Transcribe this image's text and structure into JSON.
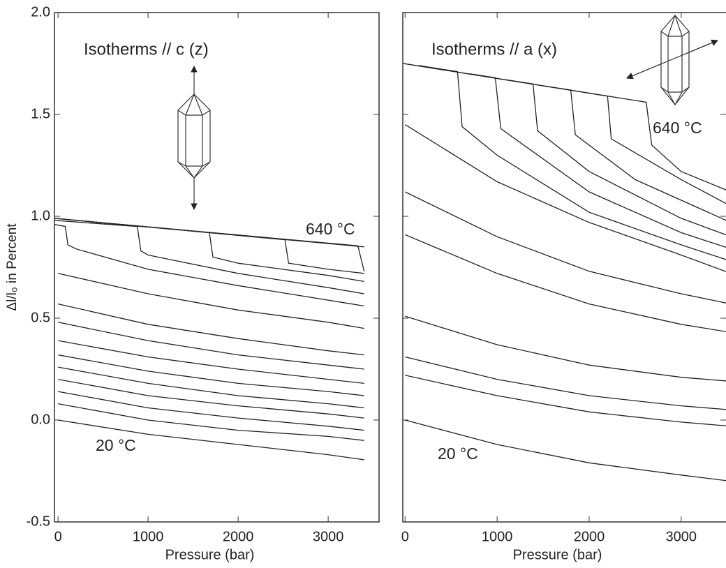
{
  "chart_data": [
    {
      "type": "line",
      "title": "Isotherms // c (z)",
      "xlabel": "Pressure (bar)",
      "ylabel": "Δl/l₀ in Percent",
      "annotations": [
        "640 °C",
        "20 °C"
      ],
      "color": "#222222",
      "xlim": [
        -40,
        3565
      ],
      "xticks": [
        0,
        1000,
        2000,
        3000
      ],
      "ylim": [
        -0.5,
        2.0
      ],
      "yticks": [
        -0.5,
        {
          "value": 0,
          "label": "0.0"
        },
        0.5,
        {
          "value": 1,
          "label": "1.0"
        },
        1.5,
        {
          "value": 2,
          "label": "2.0"
        }
      ],
      "series": [
        {
          "x": [
            0,
            1000,
            2000,
            3000,
            3400
          ],
          "values": [
            0.0,
            -0.07,
            -0.12,
            -0.17,
            -0.195
          ]
        },
        {
          "x": [
            0,
            1000,
            2000,
            3000,
            3400
          ],
          "values": [
            0.08,
            0.0,
            -0.05,
            -0.08,
            -0.1
          ]
        },
        {
          "x": [
            0,
            1000,
            2000,
            3000,
            3400
          ],
          "values": [
            0.14,
            0.06,
            0.01,
            -0.03,
            -0.05
          ]
        },
        {
          "x": [
            0,
            1000,
            2000,
            3000,
            3400
          ],
          "values": [
            0.2,
            0.12,
            0.07,
            0.03,
            0.01
          ]
        },
        {
          "x": [
            0,
            1000,
            2000,
            3000,
            3400
          ],
          "values": [
            0.26,
            0.18,
            0.12,
            0.08,
            0.06
          ]
        },
        {
          "x": [
            0,
            1000,
            2000,
            3000,
            3400
          ],
          "values": [
            0.32,
            0.24,
            0.18,
            0.14,
            0.12
          ]
        },
        {
          "x": [
            0,
            1000,
            2000,
            3000,
            3400
          ],
          "values": [
            0.39,
            0.31,
            0.25,
            0.2,
            0.18
          ]
        },
        {
          "x": [
            0,
            1000,
            2000,
            3000,
            3400
          ],
          "values": [
            0.48,
            0.39,
            0.32,
            0.27,
            0.25
          ]
        },
        {
          "x": [
            0,
            1000,
            2000,
            3000,
            3400
          ],
          "values": [
            0.57,
            0.47,
            0.4,
            0.34,
            0.32
          ]
        },
        {
          "x": [
            0,
            1000,
            2000,
            3000,
            3400
          ],
          "values": [
            0.72,
            0.62,
            0.54,
            0.48,
            0.45
          ]
        },
        {
          "x": [
            -40,
            80,
            110,
            200,
            1000,
            2000,
            3400
          ],
          "values": [
            0.96,
            0.95,
            0.86,
            0.84,
            0.74,
            0.66,
            0.56
          ]
        },
        {
          "x": [
            -40,
            880,
            920,
            1000,
            2000,
            3000,
            3400
          ],
          "values": [
            0.98,
            0.95,
            0.83,
            0.81,
            0.72,
            0.65,
            0.62
          ]
        },
        {
          "x": [
            -40,
            1680,
            1720,
            2000,
            3000,
            3400
          ],
          "values": [
            0.99,
            0.92,
            0.8,
            0.77,
            0.71,
            0.68
          ]
        },
        {
          "x": [
            -40,
            2520,
            2560,
            3000,
            3400
          ],
          "values": [
            0.99,
            0.885,
            0.77,
            0.74,
            0.72
          ]
        },
        {
          "x": [
            -40,
            3330,
            3360,
            3400
          ],
          "values": [
            0.99,
            0.855,
            0.8,
            0.73
          ]
        },
        {
          "x": [
            -40,
            3400
          ],
          "values": [
            0.99,
            0.85
          ]
        }
      ]
    },
    {
      "type": "line",
      "title": "Isotherms // a (x)",
      "xlabel": "Pressure (bar)",
      "annotations": [
        "640 °C",
        "20 °C"
      ],
      "color": "#222222",
      "show_ytick_labels": false,
      "xlim": [
        -25,
        3540
      ],
      "xticks": [
        0,
        1000,
        2000,
        3000
      ],
      "ylim": [
        -0.5,
        2.0
      ],
      "yticks": [
        -0.5,
        0,
        0.5,
        1,
        1.5,
        2
      ],
      "series": [
        {
          "x": [
            0,
            1000,
            2000,
            3000,
            3540
          ],
          "values": [
            0.0,
            -0.12,
            -0.21,
            -0.27,
            -0.3
          ]
        },
        {
          "x": [
            0,
            1000,
            2000,
            3000,
            3540
          ],
          "values": [
            0.22,
            0.12,
            0.04,
            -0.01,
            -0.03
          ]
        },
        {
          "x": [
            0,
            1000,
            2000,
            3000,
            3540
          ],
          "values": [
            0.31,
            0.2,
            0.12,
            0.07,
            0.05
          ]
        },
        {
          "x": [
            0,
            1000,
            2000,
            3000,
            3540
          ],
          "values": [
            0.51,
            0.37,
            0.27,
            0.21,
            0.19
          ]
        },
        {
          "x": [
            0,
            1000,
            2000,
            3000,
            3540
          ],
          "values": [
            0.91,
            0.72,
            0.57,
            0.47,
            0.43
          ]
        },
        {
          "x": [
            0,
            1000,
            2000,
            3000,
            3540
          ],
          "values": [
            1.12,
            0.9,
            0.73,
            0.62,
            0.57
          ]
        },
        {
          "x": [
            0,
            1000,
            2000,
            3000,
            3540
          ],
          "values": [
            1.45,
            1.17,
            0.97,
            0.81,
            0.72
          ]
        },
        {
          "x": [
            150,
            570,
            620,
            1000,
            2000,
            3000,
            3540
          ],
          "values": [
            1.74,
            1.71,
            1.44,
            1.3,
            1.02,
            0.86,
            0.78
          ]
        },
        {
          "x": [
            700,
            980,
            1040,
            2000,
            3000,
            3540
          ],
          "values": [
            1.7,
            1.68,
            1.43,
            1.12,
            0.92,
            0.84
          ]
        },
        {
          "x": [
            1100,
            1390,
            1440,
            2000,
            3000,
            3540
          ],
          "values": [
            1.67,
            1.65,
            1.42,
            1.22,
            0.99,
            0.9
          ]
        },
        {
          "x": [
            1500,
            1800,
            1850,
            2500,
            3540
          ],
          "values": [
            1.64,
            1.62,
            1.4,
            1.18,
            0.97
          ]
        },
        {
          "x": [
            -20,
            2200,
            2240,
            3000,
            3540
          ],
          "values": [
            1.75,
            1.59,
            1.38,
            1.18,
            1.05
          ]
        },
        {
          "x": [
            -20,
            2620,
            2680,
            3000,
            3540
          ],
          "values": [
            1.75,
            1.56,
            1.35,
            1.22,
            1.12
          ]
        }
      ]
    }
  ]
}
